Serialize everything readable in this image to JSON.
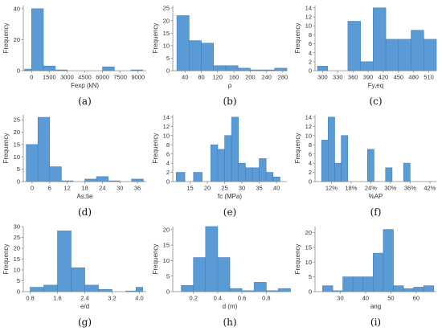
{
  "colors": {
    "bar": "#5b9bd5",
    "bar_edge": "#3f7fbf",
    "axis": "#8a8a8a",
    "text": "#333333"
  },
  "chart_data": [
    {
      "type": "bar",
      "panel_label": "(a)",
      "xlabel": "Fexp (kN)",
      "ylabel": "Frequency",
      "xlim": [
        -700,
        9700
      ],
      "ylim": [
        0,
        42
      ],
      "xticks": [
        0,
        1500,
        3000,
        4500,
        6000,
        7500,
        9000
      ],
      "xtick_labels": [
        "0",
        "1500",
        "3000",
        "4500",
        "6000",
        "7500",
        "9000"
      ],
      "yticks": [
        0,
        20,
        40
      ],
      "ytick_labels": [
        "0",
        "20",
        "40"
      ],
      "bins": [
        [
          -600,
          0,
          1
        ],
        [
          0,
          1000,
          40
        ],
        [
          1000,
          2000,
          3
        ],
        [
          2000,
          3000,
          0.5
        ],
        [
          6000,
          7000,
          2.5
        ],
        [
          8400,
          9400,
          0.5
        ]
      ]
    },
    {
      "type": "bar",
      "panel_label": "(b)",
      "xlabel": "ρ",
      "ylabel": "Frequency",
      "xlim": [
        10,
        290
      ],
      "ylim": [
        0,
        26
      ],
      "xticks": [
        40,
        80,
        120,
        160,
        200,
        240,
        280
      ],
      "xtick_labels": [
        "40",
        "80",
        "120",
        "160",
        "200",
        "240",
        "280"
      ],
      "yticks": [
        0,
        5,
        10,
        15,
        20,
        25
      ],
      "ytick_labels": [
        "0",
        "5",
        "10",
        "15",
        "20",
        "25"
      ],
      "bins": [
        [
          20,
          50,
          22
        ],
        [
          50,
          80,
          12
        ],
        [
          80,
          110,
          11
        ],
        [
          110,
          140,
          2
        ],
        [
          140,
          170,
          2
        ],
        [
          170,
          200,
          1
        ],
        [
          200,
          230,
          0.3
        ],
        [
          230,
          260,
          0.3
        ],
        [
          260,
          290,
          1
        ]
      ]
    },
    {
      "type": "bar",
      "panel_label": "(c)",
      "xlabel": "Fy,eq",
      "ylabel": "Frequency",
      "xlim": [
        285,
        525
      ],
      "ylim": [
        0,
        14.5
      ],
      "xticks": [
        300,
        330,
        360,
        390,
        420,
        450,
        480,
        510
      ],
      "xtick_labels": [
        "300",
        "330",
        "360",
        "390",
        "420",
        "450",
        "480",
        "510"
      ],
      "yticks": [
        0,
        2,
        4,
        6,
        8,
        10,
        12,
        14
      ],
      "ytick_labels": [
        "0",
        "2",
        "4",
        "6",
        "8",
        "10",
        "12",
        "14"
      ],
      "bins": [
        [
          290,
          310,
          1
        ],
        [
          350,
          375,
          11
        ],
        [
          375,
          400,
          2
        ],
        [
          400,
          425,
          14
        ],
        [
          425,
          450,
          7
        ],
        [
          450,
          475,
          7
        ],
        [
          475,
          500,
          9
        ],
        [
          500,
          525,
          7
        ]
      ]
    },
    {
      "type": "bar",
      "panel_label": "(d)",
      "xlabel": "As,tie",
      "ylabel": "Frequency",
      "xlim": [
        -3,
        39
      ],
      "ylim": [
        0,
        27
      ],
      "xticks": [
        0,
        6,
        12,
        18,
        24,
        30,
        36
      ],
      "xtick_labels": [
        "0",
        "6",
        "12",
        "18",
        "24",
        "30",
        "36"
      ],
      "yticks": [
        0,
        5,
        10,
        15,
        20,
        25
      ],
      "ytick_labels": [
        "0",
        "5",
        "10",
        "15",
        "20",
        "25"
      ],
      "bins": [
        [
          -2,
          2,
          15
        ],
        [
          2,
          6,
          26
        ],
        [
          6,
          10,
          6
        ],
        [
          10,
          14,
          0.3
        ],
        [
          18,
          22,
          1
        ],
        [
          22,
          26,
          2
        ],
        [
          26,
          30,
          0.3
        ],
        [
          34,
          38,
          1
        ]
      ]
    },
    {
      "type": "bar",
      "panel_label": "(e)",
      "xlabel": "fc (MPa)",
      "ylabel": "Frequency",
      "xlim": [
        10,
        43
      ],
      "ylim": [
        0,
        14.5
      ],
      "xticks": [
        15,
        20,
        25,
        30,
        35,
        40
      ],
      "xtick_labels": [
        "15",
        "20",
        "25",
        "30",
        "35",
        "40"
      ],
      "yticks": [
        0,
        2,
        4,
        6,
        8,
        10,
        12,
        14
      ],
      "ytick_labels": [
        "0",
        "2",
        "4",
        "6",
        "8",
        "10",
        "12",
        "14"
      ],
      "bins": [
        [
          11,
          13.5,
          2
        ],
        [
          16,
          18.5,
          2
        ],
        [
          21,
          23,
          8
        ],
        [
          23,
          25,
          7
        ],
        [
          25,
          27,
          10
        ],
        [
          27,
          29,
          14
        ],
        [
          29,
          31,
          4
        ],
        [
          31,
          33,
          3
        ],
        [
          33,
          35,
          3
        ],
        [
          35,
          37,
          5
        ],
        [
          37,
          39,
          2
        ],
        [
          39,
          41,
          1
        ]
      ]
    },
    {
      "type": "bar",
      "panel_label": "(f)",
      "xlabel": "%AP",
      "ylabel": "Frequency",
      "xlim": [
        7,
        44
      ],
      "ylim": [
        0,
        14.5
      ],
      "xticks": [
        12,
        18,
        24,
        30,
        36,
        42
      ],
      "xtick_labels": [
        "12%",
        "18%",
        "24%",
        "30%",
        "36%",
        "42%"
      ],
      "yticks": [
        0,
        2,
        4,
        6,
        8,
        10,
        12,
        14
      ],
      "ytick_labels": [
        "0",
        "2",
        "4",
        "6",
        "8",
        "10",
        "12",
        "14"
      ],
      "bins": [
        [
          9,
          11,
          9
        ],
        [
          11,
          13,
          14
        ],
        [
          13,
          15,
          4
        ],
        [
          15,
          17,
          10
        ],
        [
          23,
          25,
          7
        ],
        [
          28.5,
          30.5,
          3
        ],
        [
          34,
          36,
          4
        ]
      ]
    },
    {
      "type": "bar",
      "panel_label": "(g)",
      "xlabel": "e/d",
      "ylabel": "Frequency",
      "xlim": [
        0.6,
        4.2
      ],
      "ylim": [
        0,
        30
      ],
      "xticks": [
        0.8,
        1.6,
        2.4,
        3.2,
        4.0
      ],
      "xtick_labels": [
        "0.8",
        "1.6",
        "2.4",
        "3.2",
        "4.0"
      ],
      "yticks": [
        0,
        5,
        10,
        15,
        20,
        25,
        30
      ],
      "ytick_labels": [
        "0",
        "5",
        "10",
        "15",
        "20",
        "25",
        "30"
      ],
      "bins": [
        [
          0.8,
          1.2,
          2
        ],
        [
          1.2,
          1.6,
          3
        ],
        [
          1.6,
          2.0,
          28
        ],
        [
          2.0,
          2.4,
          11
        ],
        [
          2.4,
          2.8,
          3
        ],
        [
          2.8,
          3.2,
          1
        ],
        [
          3.6,
          4.0,
          0.3
        ],
        [
          3.9,
          4.1,
          2
        ]
      ]
    },
    {
      "type": "bar",
      "panel_label": "(h)",
      "xlabel": "d (m)",
      "ylabel": "Frequency",
      "xlim": [
        0.03,
        0.97
      ],
      "ylim": [
        0,
        21
      ],
      "xticks": [
        0.2,
        0.4,
        0.6,
        0.8
      ],
      "xtick_labels": [
        "0.2",
        "0.4",
        "0.6",
        "0.8"
      ],
      "yticks": [
        0,
        5,
        10,
        15,
        20
      ],
      "ytick_labels": [
        "0",
        "5",
        "10",
        "15",
        "20"
      ],
      "bins": [
        [
          0.1,
          0.2,
          2
        ],
        [
          0.2,
          0.3,
          11
        ],
        [
          0.3,
          0.4,
          21
        ],
        [
          0.4,
          0.5,
          11
        ],
        [
          0.5,
          0.6,
          1
        ],
        [
          0.6,
          0.7,
          0.3
        ],
        [
          0.7,
          0.8,
          3
        ],
        [
          0.8,
          0.9,
          0.3
        ],
        [
          0.9,
          1.0,
          1
        ]
      ]
    },
    {
      "type": "bar",
      "panel_label": "(i)",
      "xlabel": "ang",
      "ylabel": "Frequency",
      "xlim": [
        20,
        68
      ],
      "ylim": [
        0,
        22
      ],
      "xticks": [
        30,
        40,
        50,
        60
      ],
      "xtick_labels": [
        "30",
        "40",
        "50",
        "60"
      ],
      "yticks": [
        0,
        5,
        10,
        15,
        20
      ],
      "ytick_labels": [
        "0",
        "5",
        "10",
        "15",
        "20"
      ],
      "bins": [
        [
          23,
          27,
          2
        ],
        [
          27,
          31,
          0.3
        ],
        [
          31,
          35,
          5
        ],
        [
          35,
          39,
          5
        ],
        [
          39,
          43,
          5
        ],
        [
          43,
          47,
          13
        ],
        [
          47,
          51,
          21
        ],
        [
          51,
          55,
          2
        ],
        [
          55,
          59,
          1
        ],
        [
          59,
          63,
          1.5
        ],
        [
          63,
          67,
          2
        ]
      ]
    }
  ]
}
